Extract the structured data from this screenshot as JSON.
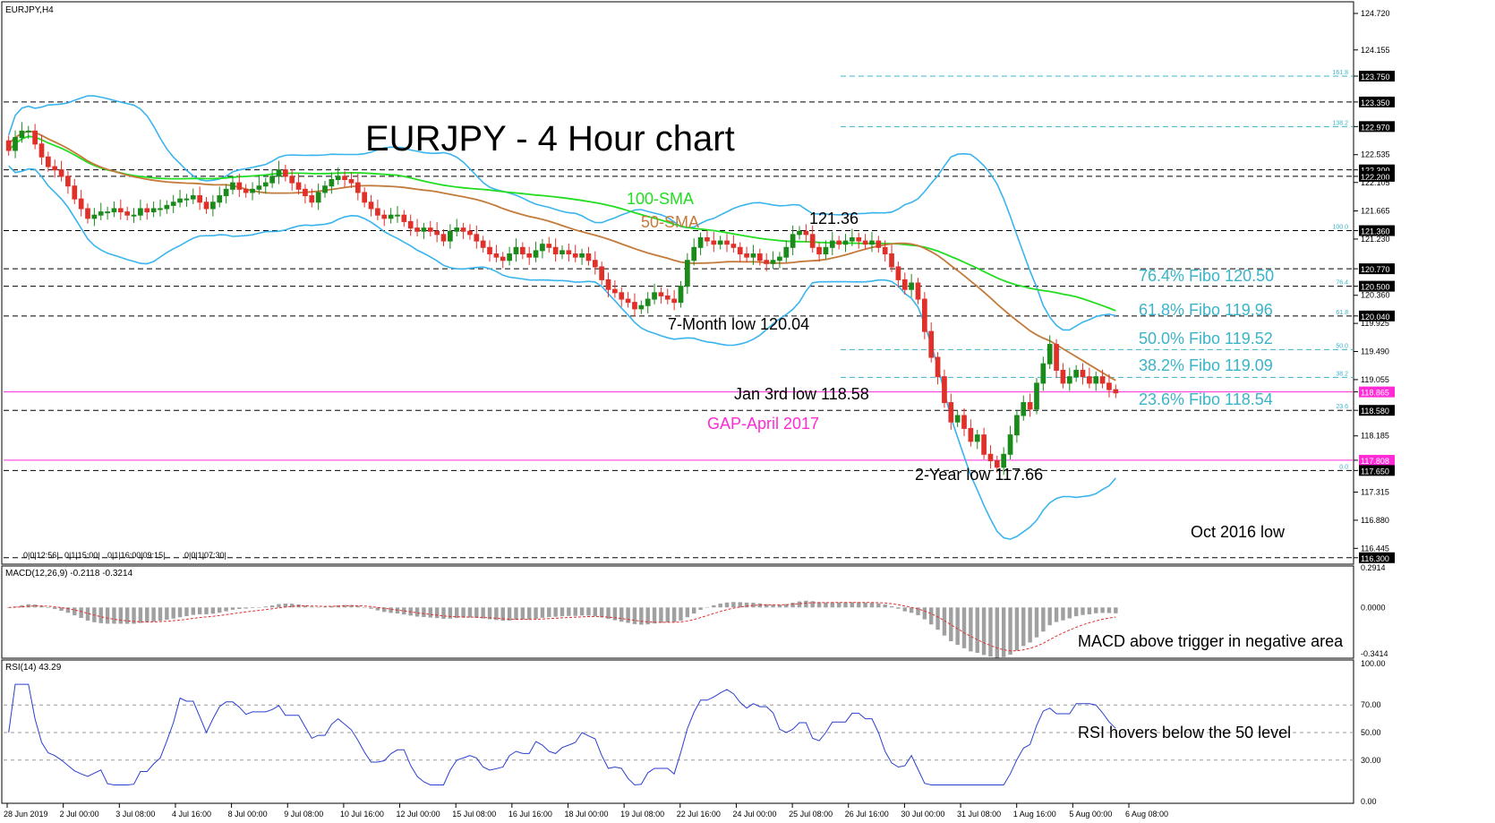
{
  "symbol_label": "EURJPY,H4",
  "title": "EURJPY - 4 Hour chart",
  "colors": {
    "bull": "#1a8a1a",
    "bear": "#e0302a",
    "bollinger": "#3ab4ee",
    "sma100": "#22dd22",
    "sma50": "#c47a3a",
    "fibo": "#3ab4c8",
    "magenta": "#ff2bd6",
    "rsi": "#2b3fd0",
    "macd_hist": "#a0a0a0",
    "macd_signal": "#e03030"
  },
  "chart_data": [
    {
      "type": "candlestick",
      "name": "price",
      "ylim": [
        116.2,
        124.9
      ],
      "price_scale_ticks": [
        "124.720",
        "124.155",
        "123.750",
        "123.350",
        "122.970",
        "122.535",
        "122.300",
        "122.200",
        "122.105",
        "121.665",
        "121.360",
        "121.230",
        "120.770",
        "120.500",
        "120.360",
        "120.040",
        "119.925",
        "119.490",
        "119.055",
        "118.865",
        "118.580",
        "118.185",
        "117.808",
        "117.650",
        "117.315",
        "116.880",
        "116.445",
        "116.300"
      ],
      "x_labels": [
        "28 Jun 2019",
        "2 Jul 00:00",
        "3 Jul 08:00",
        "4 Jul 16:00",
        "8 Jul 00:00",
        "9 Jul 08:00",
        "10 Jul 16:00",
        "12 Jul 00:00",
        "15 Jul 08:00",
        "16 Jul 16:00",
        "18 Jul 00:00",
        "19 Jul 08:00",
        "22 Jul 16:00",
        "24 Jul 00:00",
        "25 Jul 08:00",
        "26 Jul 16:00",
        "30 Jul 00:00",
        "31 Jul 08:00",
        "1 Aug 16:00",
        "5 Aug 00:00",
        "6 Aug 08:00"
      ],
      "closes": [
        122.6,
        122.8,
        122.9,
        122.9,
        122.7,
        122.5,
        122.35,
        122.3,
        122.2,
        122.05,
        121.85,
        121.7,
        121.55,
        121.6,
        121.65,
        121.65,
        121.7,
        121.65,
        121.6,
        121.6,
        121.7,
        121.65,
        121.7,
        121.7,
        121.75,
        121.8,
        121.85,
        121.85,
        121.9,
        121.8,
        121.7,
        121.8,
        121.9,
        122.0,
        122.1,
        122.0,
        121.95,
        122.0,
        122.05,
        122.1,
        122.2,
        122.3,
        122.2,
        122.1,
        122.0,
        121.9,
        121.8,
        121.95,
        122.05,
        122.15,
        122.2,
        122.15,
        122.1,
        121.95,
        121.8,
        121.7,
        121.6,
        121.55,
        121.6,
        121.6,
        121.5,
        121.4,
        121.35,
        121.4,
        121.35,
        121.3,
        121.2,
        121.35,
        121.4,
        121.35,
        121.3,
        121.2,
        121.1,
        121.0,
        120.95,
        120.9,
        121.0,
        121.1,
        121.0,
        120.95,
        121.05,
        121.15,
        121.1,
        121.0,
        121.05,
        121.0,
        120.95,
        121.0,
        120.9,
        120.8,
        120.6,
        120.45,
        120.4,
        120.3,
        120.25,
        120.15,
        120.2,
        120.3,
        120.4,
        120.35,
        120.3,
        120.25,
        120.5,
        120.9,
        121.1,
        121.25,
        121.2,
        121.15,
        121.2,
        121.15,
        121.1,
        121.0,
        120.95,
        121.0,
        120.9,
        120.85,
        120.9,
        120.95,
        121.1,
        121.3,
        121.35,
        121.3,
        121.1,
        121.0,
        121.1,
        121.2,
        121.15,
        121.2,
        121.25,
        121.2,
        121.15,
        121.2,
        121.1,
        121.0,
        120.8,
        120.6,
        120.45,
        120.55,
        120.3,
        119.8,
        119.4,
        119.1,
        118.7,
        118.4,
        118.5,
        118.3,
        118.1,
        118.2,
        117.9,
        117.8,
        117.7,
        117.9,
        118.2,
        118.5,
        118.7,
        118.6,
        119.0,
        119.3,
        119.6,
        119.2,
        119.0,
        119.1,
        119.2,
        119.1,
        119.0,
        119.1,
        119.0,
        118.9,
        118.85
      ],
      "hlines": [
        {
          "label": "123.750",
          "y": 123.75,
          "x_start": 0.62,
          "color": "fibo",
          "fib_text": "161.8"
        },
        {
          "label": "123.350",
          "y": 123.35,
          "x_start": 0.0,
          "color": "black"
        },
        {
          "label": "122.970",
          "y": 122.97,
          "x_start": 0.62,
          "color": "fibo",
          "fib_text": "138.2"
        },
        {
          "label": "122.300",
          "y": 122.3,
          "x_start": 0.0,
          "color": "black"
        },
        {
          "label": "122.200",
          "y": 122.2,
          "x_start": 0.0,
          "color": "black"
        },
        {
          "label": "121.360",
          "y": 121.36,
          "x_start": 0.0,
          "color": "black",
          "fib_text": "100.0"
        },
        {
          "label": "120.770",
          "y": 120.77,
          "x_start": 0.0,
          "color": "black"
        },
        {
          "label": "120.500",
          "y": 120.5,
          "x_start": 0.0,
          "color": "black",
          "fib_text": "76.4"
        },
        {
          "label": "120.040",
          "y": 120.04,
          "x_start": 0.0,
          "color": "black",
          "fib_text": "61.8"
        },
        {
          "label": "119.520",
          "y": 119.52,
          "x_start": 0.62,
          "color": "fibo",
          "fib_text": "50.0",
          "nolabel": true
        },
        {
          "label": "119.090",
          "y": 119.09,
          "x_start": 0.62,
          "color": "fibo",
          "fib_text": "38.2",
          "nolabel": true
        },
        {
          "label": "118.865",
          "y": 118.865,
          "x_start": 0.0,
          "color": "magenta",
          "solid": true
        },
        {
          "label": "118.580",
          "y": 118.58,
          "x_start": 0.0,
          "color": "black",
          "fib_text": "23.6"
        },
        {
          "label": "117.808",
          "y": 117.808,
          "x_start": 0.0,
          "color": "magenta",
          "solid": true
        },
        {
          "label": "117.650",
          "y": 117.65,
          "x_start": 0.0,
          "color": "black",
          "fib_text": "0.0"
        },
        {
          "label": "116.300",
          "y": 116.3,
          "x_start": 0.0,
          "color": "black"
        }
      ]
    },
    {
      "type": "bar",
      "name": "MACD(12,26,9)",
      "header": "MACD(12,26,9) -0.2118 -0.3214",
      "ylim": [
        -0.36,
        0.2914
      ],
      "ticks": [
        "0.2914",
        "0.0000",
        "-0.3414"
      ]
    },
    {
      "type": "line",
      "name": "RSI(14)",
      "header": "RSI(14) 43.29",
      "ylim": [
        0,
        100
      ],
      "ticks": [
        "100.00",
        "70.00",
        "50.00",
        "30.00",
        "0.00"
      ],
      "levels": [
        70,
        50,
        30
      ]
    }
  ],
  "annotations": {
    "sma100": "100-SMA",
    "sma50": "50-SMA",
    "high_121": "121.36",
    "low_7month": "7-Month low 120.04",
    "fib_764": "76.4% Fibo 120.50",
    "fib_618": "61.8% Fibo 119.96",
    "fib_500": "50.0% Fibo 119.52",
    "fib_382": "38.2% Fibo 119.09",
    "fib_236": "23.6% Fibo 118.54",
    "jan3": "Jan 3rd low 118.58",
    "gap": "GAP-April 2017",
    "low_2year": "2-Year low 117.66",
    "oct2016": "Oct 2016 low",
    "macd_note": "MACD above trigger in negative area",
    "rsi_note": "RSI hovers below the 50 level"
  },
  "time_stamps": [
    "0|0|12:56|",
    "0|1|15:00|",
    "0|1|16:00|09:15|",
    "0|0|1|07:30|"
  ]
}
